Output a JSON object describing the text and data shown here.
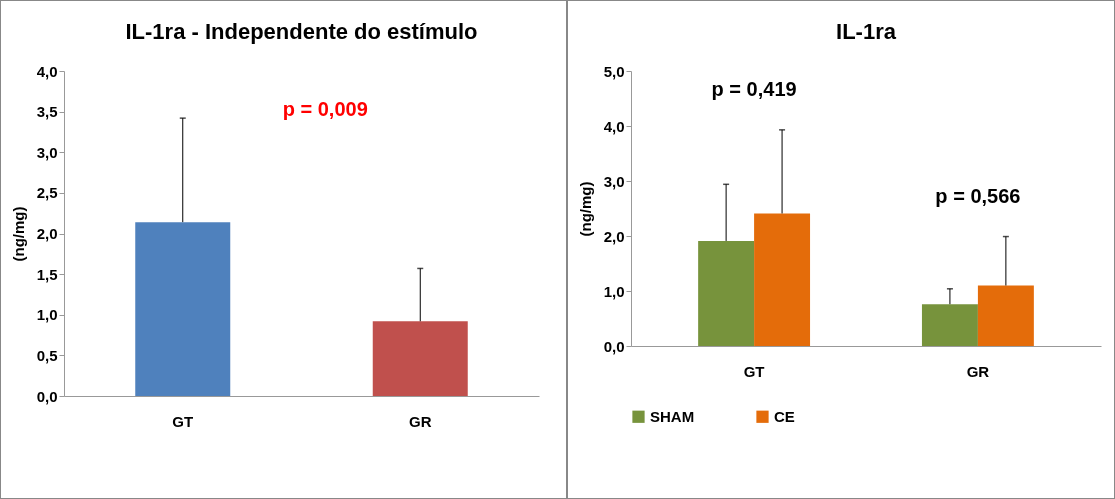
{
  "chart_data": [
    {
      "type": "bar",
      "title": "IL-1ra - Independente do estímulo",
      "ylabel": "(ng/mg)",
      "categories": [
        "GT",
        "GR"
      ],
      "values": [
        2.14,
        0.92
      ],
      "colors": [
        "#4f81bd",
        "#c0504d"
      ],
      "errors": [
        [
          2.14,
          3.42
        ],
        [
          0.92,
          1.57
        ]
      ],
      "ylim": [
        0,
        4
      ],
      "yticks": [
        {
          "value": 0,
          "label": "0,0"
        },
        {
          "value": 0.5,
          "label": "0,5"
        },
        {
          "value": 1,
          "label": "1,0"
        },
        {
          "value": 1.5,
          "label": "1,5"
        },
        {
          "value": 2,
          "label": "2,0"
        },
        {
          "value": 2.5,
          "label": "2,5"
        },
        {
          "value": 3,
          "label": "3,0"
        },
        {
          "value": 3.5,
          "label": "3,5"
        },
        {
          "value": 4,
          "label": "4,0"
        }
      ],
      "grid": false,
      "legend": false,
      "annotations": [
        "p = 0,009"
      ]
    },
    {
      "type": "bar",
      "title": "IL-1ra",
      "ylabel": "(ng/mg)",
      "categories": [
        "GT",
        "GR"
      ],
      "series": [
        {
          "name": "SHAM",
          "color": "#77933c",
          "values": [
            1.91,
            0.76
          ],
          "errors": [
            [
              1.91,
              2.94
            ],
            [
              0.76,
              1.04
            ]
          ]
        },
        {
          "name": "CE",
          "color": "#e46c0a",
          "values": [
            2.41,
            1.1
          ],
          "errors": [
            [
              2.41,
              3.93
            ],
            [
              1.1,
              1.99
            ]
          ]
        }
      ],
      "ylim": [
        0,
        5
      ],
      "yticks": [
        {
          "value": 0,
          "label": "0,0"
        },
        {
          "value": 1,
          "label": "1,0"
        },
        {
          "value": 2,
          "label": "2,0"
        },
        {
          "value": 3,
          "label": "3,0"
        },
        {
          "value": 4,
          "label": "4,0"
        },
        {
          "value": 5,
          "label": "5,0"
        }
      ],
      "grid": false,
      "legend": "bottom",
      "annotations": [
        "p = 0,419",
        "p = 0,566"
      ]
    }
  ]
}
